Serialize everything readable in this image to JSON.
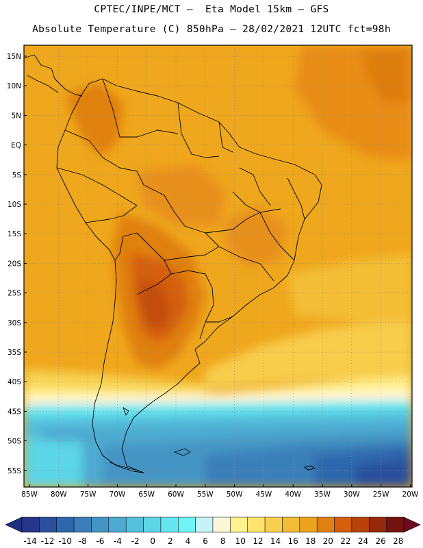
{
  "header": {
    "line1": "CPTEC/INPE/MCT –  Eta Model 15km – GFS",
    "line2": "Absolute Temperature (C) 850hPa – 28/02/2021 12UTC fct=98h"
  },
  "map": {
    "lat_labels": [
      "15N",
      "10N",
      "5N",
      "EQ",
      "5S",
      "10S",
      "15S",
      "20S",
      "25S",
      "30S",
      "35S",
      "40S",
      "45S",
      "50S",
      "55S"
    ],
    "lon_labels": [
      "85W",
      "80W",
      "75W",
      "70W",
      "65W",
      "60W",
      "55W",
      "50W",
      "45W",
      "40W",
      "35W",
      "30W",
      "25W",
      "20W"
    ],
    "lat_range": [
      -58,
      17
    ],
    "lon_range": [
      -86,
      -20
    ],
    "grid": "dotted"
  },
  "colorbar": {
    "labels": [
      "-14",
      "-12",
      "-10",
      "-8",
      "-6",
      "-4",
      "-2",
      "0",
      "2",
      "4",
      "6",
      "8",
      "10",
      "12",
      "14",
      "16",
      "18",
      "20",
      "22",
      "24",
      "26",
      "28"
    ],
    "under_color": "#1b2f80",
    "over_color": "#6e0b22",
    "colors": [
      "#26358a",
      "#2a4f9c",
      "#2f67ac",
      "#3b7fb9",
      "#4595c4",
      "#4eaad0",
      "#55c0dc",
      "#5cd5e6",
      "#63e6ef",
      "#6ff3f4",
      "#c8f2f6",
      "#fff5d8",
      "#fff291",
      "#ffe36c",
      "#f8d050",
      "#f0bd34",
      "#eca41e",
      "#e08010",
      "#d45e0c",
      "#b8430a",
      "#96290c",
      "#741310"
    ]
  }
}
